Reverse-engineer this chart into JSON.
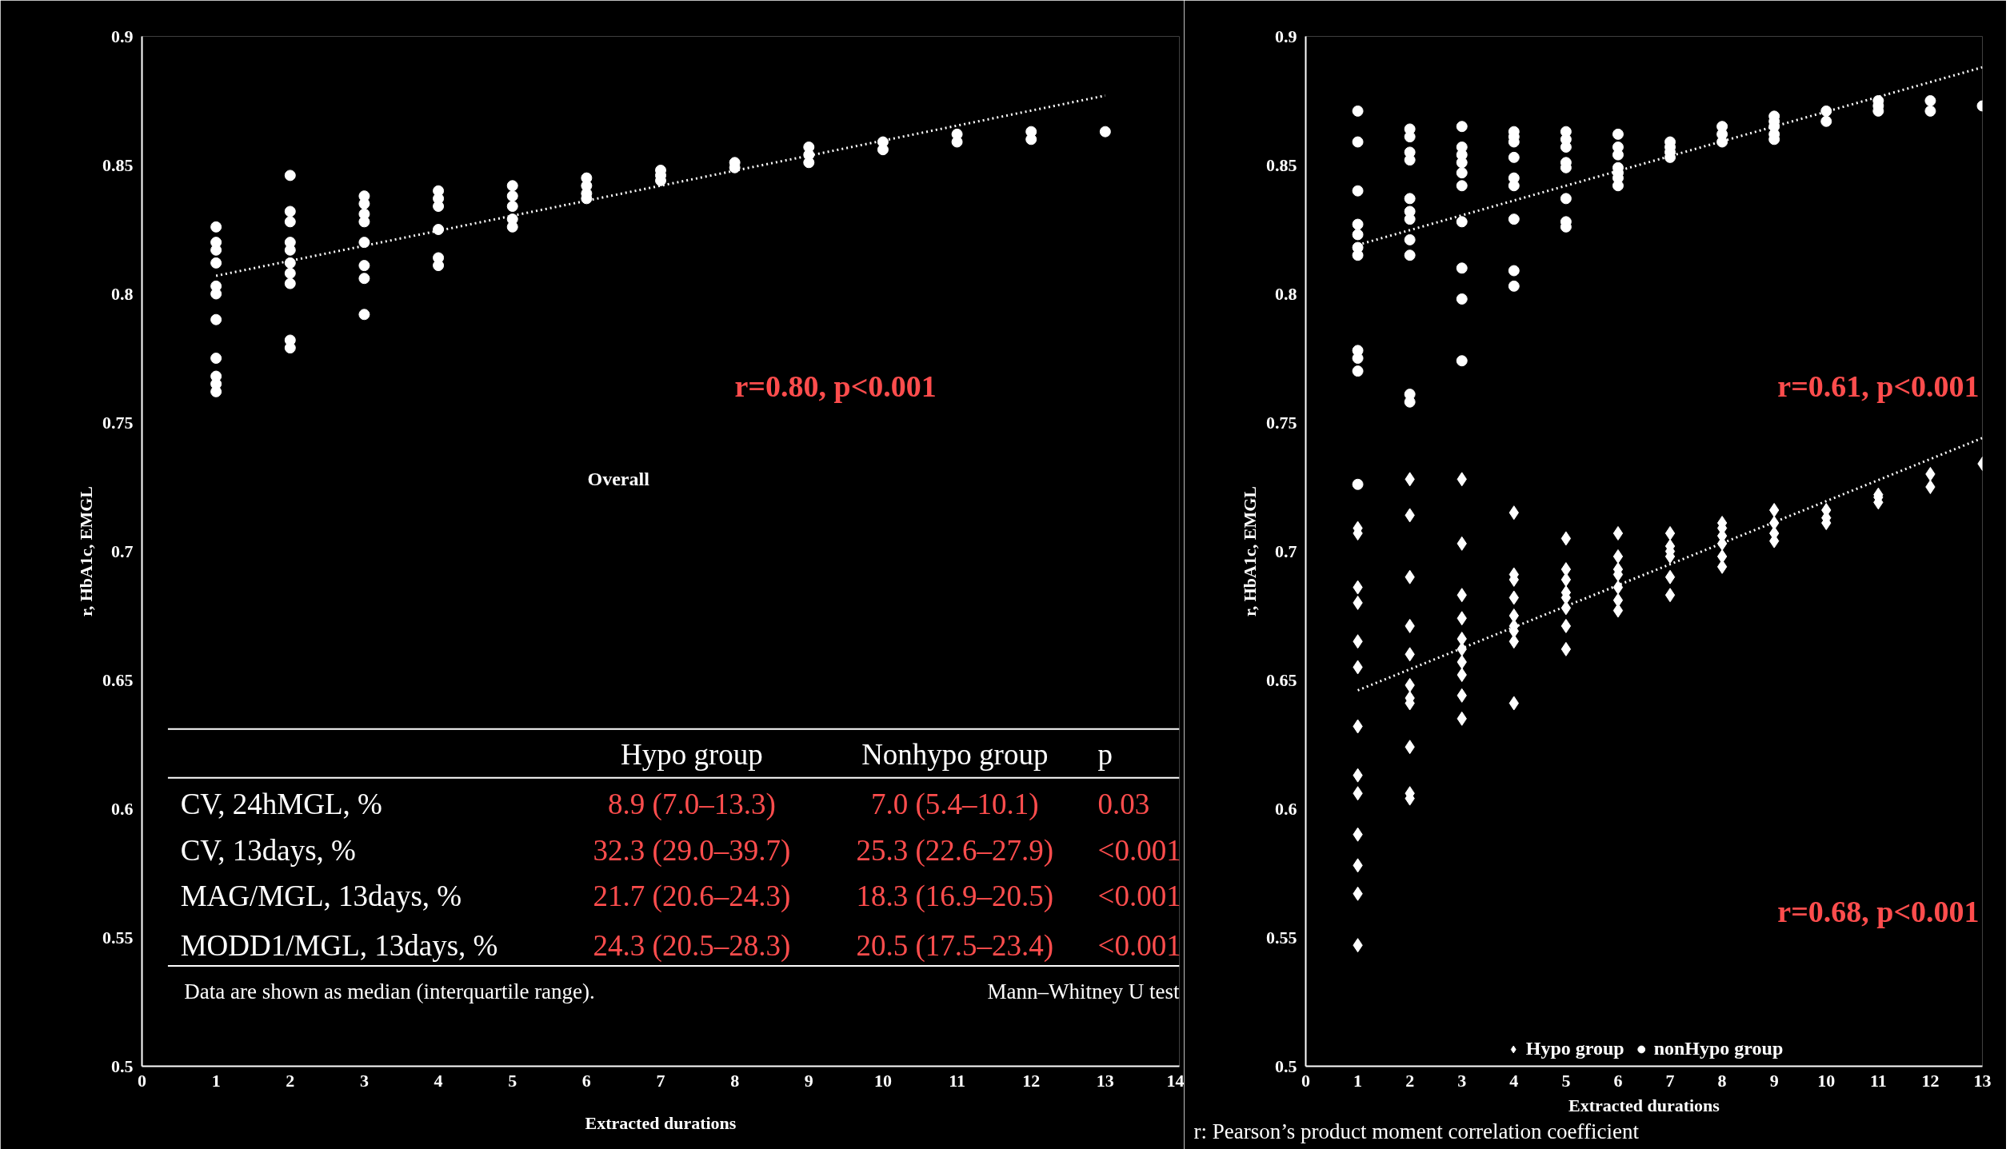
{
  "chart_data": [
    {
      "type": "scatter",
      "xlabel": "Extracted durations",
      "ylabel": "r, HbA1c, EMGL",
      "xlim": [
        0,
        14
      ],
      "ylim": [
        0.5,
        0.9
      ],
      "xticks": [
        0,
        1,
        2,
        3,
        4,
        5,
        6,
        7,
        8,
        9,
        10,
        11,
        12,
        13,
        14
      ],
      "yticks": [
        0.5,
        0.55,
        0.6,
        0.65,
        0.7,
        0.75,
        0.8,
        0.85,
        0.9
      ],
      "grid": false,
      "legend": false,
      "annotations": [
        "r=0.80, p<0.001",
        "Overall",
        "Hypo group",
        "Nonhypo group",
        "p",
        "CV, 24hMGL, %",
        "8.9 (7.0–13.3)",
        "7.0 (5.4–10.1)",
        "0.03",
        "CV, 13days, %",
        "32.3 (29.0–39.7)",
        "25.3 (22.6–27.9)",
        "<0.001",
        "MAG/MGL, 13days, %",
        "21.7 (20.6–24.3)",
        "18.3 (16.9–20.5)",
        "<0.001",
        "MODD1/MGL, 13days, %",
        "24.3 (20.5–28.3)",
        "20.5 (17.5–23.4)",
        "<0.001",
        "Data are shown as median (interquartile range).",
        "Mann–Whitney U test"
      ],
      "series": [
        {
          "marker": "circle",
          "color": "#ffffff",
          "x": [
            1,
            1,
            1,
            1,
            1,
            1,
            1,
            1,
            1,
            1,
            1,
            2,
            2,
            2,
            2,
            2,
            2,
            2,
            2,
            2,
            2,
            3,
            3,
            3,
            3,
            3,
            3,
            3,
            3,
            4,
            4,
            4,
            4,
            4,
            4,
            5,
            5,
            5,
            5,
            5,
            6,
            6,
            6,
            6,
            7,
            7,
            7,
            8,
            8,
            9,
            9,
            9,
            10,
            10,
            11,
            11,
            12,
            12,
            13
          ],
          "values": [
            0.826,
            0.82,
            0.817,
            0.812,
            0.803,
            0.8,
            0.79,
            0.775,
            0.768,
            0.765,
            0.762,
            0.846,
            0.832,
            0.828,
            0.82,
            0.817,
            0.812,
            0.808,
            0.804,
            0.782,
            0.779,
            0.838,
            0.835,
            0.831,
            0.828,
            0.82,
            0.811,
            0.806,
            0.792,
            0.84,
            0.837,
            0.834,
            0.825,
            0.814,
            0.811,
            0.842,
            0.838,
            0.834,
            0.829,
            0.826,
            0.845,
            0.842,
            0.839,
            0.837,
            0.848,
            0.846,
            0.844,
            0.851,
            0.849,
            0.857,
            0.854,
            0.851,
            0.859,
            0.856,
            0.862,
            0.859,
            0.863,
            0.86,
            0.863
          ]
        },
        {
          "type": "line",
          "line_style": "dotted",
          "color": "#ffffff",
          "x": [
            1,
            13
          ],
          "values": [
            0.807,
            0.877
          ]
        }
      ]
    },
    {
      "type": "scatter",
      "xlabel": "Extracted durations",
      "ylabel": "r, HbA1c, EMGL",
      "xlim": [
        0,
        13
      ],
      "ylim": [
        0.5,
        0.9
      ],
      "xticks": [
        0,
        1,
        2,
        3,
        4,
        5,
        6,
        7,
        8,
        9,
        10,
        11,
        12,
        13
      ],
      "yticks": [
        0.5,
        0.55,
        0.6,
        0.65,
        0.7,
        0.75,
        0.8,
        0.85,
        0.9
      ],
      "grid": false,
      "legend": "bottom",
      "annotations": [
        "r=0.61, p<0.001",
        "r=0.68, p<0.001",
        "r: Pearson’s product moment correlation coefficient"
      ],
      "series": [
        {
          "name": "Hypo group",
          "marker": "diamond",
          "color": "#ffffff",
          "x": [
            1,
            1,
            1,
            1,
            1,
            1,
            1,
            1,
            1,
            1,
            1,
            1,
            1,
            2,
            2,
            2,
            2,
            2,
            2,
            2,
            2,
            2,
            2,
            2,
            3,
            3,
            3,
            3,
            3,
            3,
            3,
            3,
            3,
            3,
            4,
            4,
            4,
            4,
            4,
            4,
            4,
            4,
            4,
            5,
            5,
            5,
            5,
            5,
            5,
            5,
            5,
            6,
            6,
            6,
            6,
            6,
            6,
            6,
            7,
            7,
            7,
            7,
            7,
            7,
            8,
            8,
            8,
            8,
            8,
            8,
            9,
            9,
            9,
            9,
            10,
            10,
            10,
            11,
            11,
            11,
            12,
            12,
            13
          ],
          "values": [
            0.709,
            0.707,
            0.686,
            0.68,
            0.665,
            0.655,
            0.632,
            0.613,
            0.606,
            0.59,
            0.578,
            0.567,
            0.547,
            0.728,
            0.714,
            0.69,
            0.671,
            0.66,
            0.648,
            0.643,
            0.641,
            0.624,
            0.606,
            0.604,
            0.728,
            0.703,
            0.683,
            0.674,
            0.666,
            0.662,
            0.657,
            0.652,
            0.644,
            0.635,
            0.715,
            0.691,
            0.689,
            0.682,
            0.675,
            0.671,
            0.669,
            0.665,
            0.641,
            0.705,
            0.693,
            0.689,
            0.684,
            0.682,
            0.678,
            0.671,
            0.662,
            0.707,
            0.698,
            0.693,
            0.691,
            0.686,
            0.681,
            0.677,
            0.707,
            0.702,
            0.7,
            0.698,
            0.69,
            0.683,
            0.711,
            0.709,
            0.706,
            0.703,
            0.698,
            0.694,
            0.716,
            0.711,
            0.707,
            0.704,
            0.716,
            0.713,
            0.711,
            0.722,
            0.721,
            0.719,
            0.73,
            0.725,
            0.734
          ]
        },
        {
          "name": "nonHypo group",
          "marker": "circle",
          "color": "#ffffff",
          "x": [
            1,
            1,
            1,
            1,
            1,
            1,
            1,
            1,
            1,
            1,
            1,
            2,
            2,
            2,
            2,
            2,
            2,
            2,
            2,
            2,
            2,
            2,
            3,
            3,
            3,
            3,
            3,
            3,
            3,
            3,
            3,
            3,
            4,
            4,
            4,
            4,
            4,
            4,
            4,
            4,
            4,
            5,
            5,
            5,
            5,
            5,
            5,
            5,
            5,
            6,
            6,
            6,
            6,
            6,
            6,
            6,
            7,
            7,
            7,
            7,
            8,
            8,
            8,
            9,
            9,
            9,
            9,
            9,
            10,
            10,
            11,
            11,
            11,
            12,
            12,
            13
          ],
          "values": [
            0.871,
            0.859,
            0.84,
            0.827,
            0.823,
            0.818,
            0.815,
            0.778,
            0.775,
            0.77,
            0.726,
            0.864,
            0.861,
            0.855,
            0.852,
            0.837,
            0.832,
            0.829,
            0.821,
            0.815,
            0.761,
            0.758,
            0.865,
            0.857,
            0.854,
            0.851,
            0.847,
            0.842,
            0.828,
            0.81,
            0.798,
            0.774,
            0.863,
            0.861,
            0.859,
            0.853,
            0.845,
            0.842,
            0.829,
            0.809,
            0.803,
            0.863,
            0.86,
            0.857,
            0.851,
            0.849,
            0.837,
            0.828,
            0.826,
            0.862,
            0.857,
            0.854,
            0.849,
            0.847,
            0.845,
            0.842,
            0.859,
            0.857,
            0.855,
            0.853,
            0.865,
            0.862,
            0.859,
            0.869,
            0.867,
            0.865,
            0.862,
            0.86,
            0.871,
            0.867,
            0.875,
            0.873,
            0.871,
            0.875,
            0.871,
            0.873
          ]
        },
        {
          "type": "line",
          "line_style": "dotted",
          "color": "#ffffff",
          "x": [
            1,
            13
          ],
          "values": [
            0.819,
            0.888
          ]
        },
        {
          "type": "line",
          "line_style": "dotted",
          "color": "#ffffff",
          "x": [
            1,
            13
          ],
          "values": [
            0.646,
            0.744
          ]
        }
      ]
    }
  ]
}
